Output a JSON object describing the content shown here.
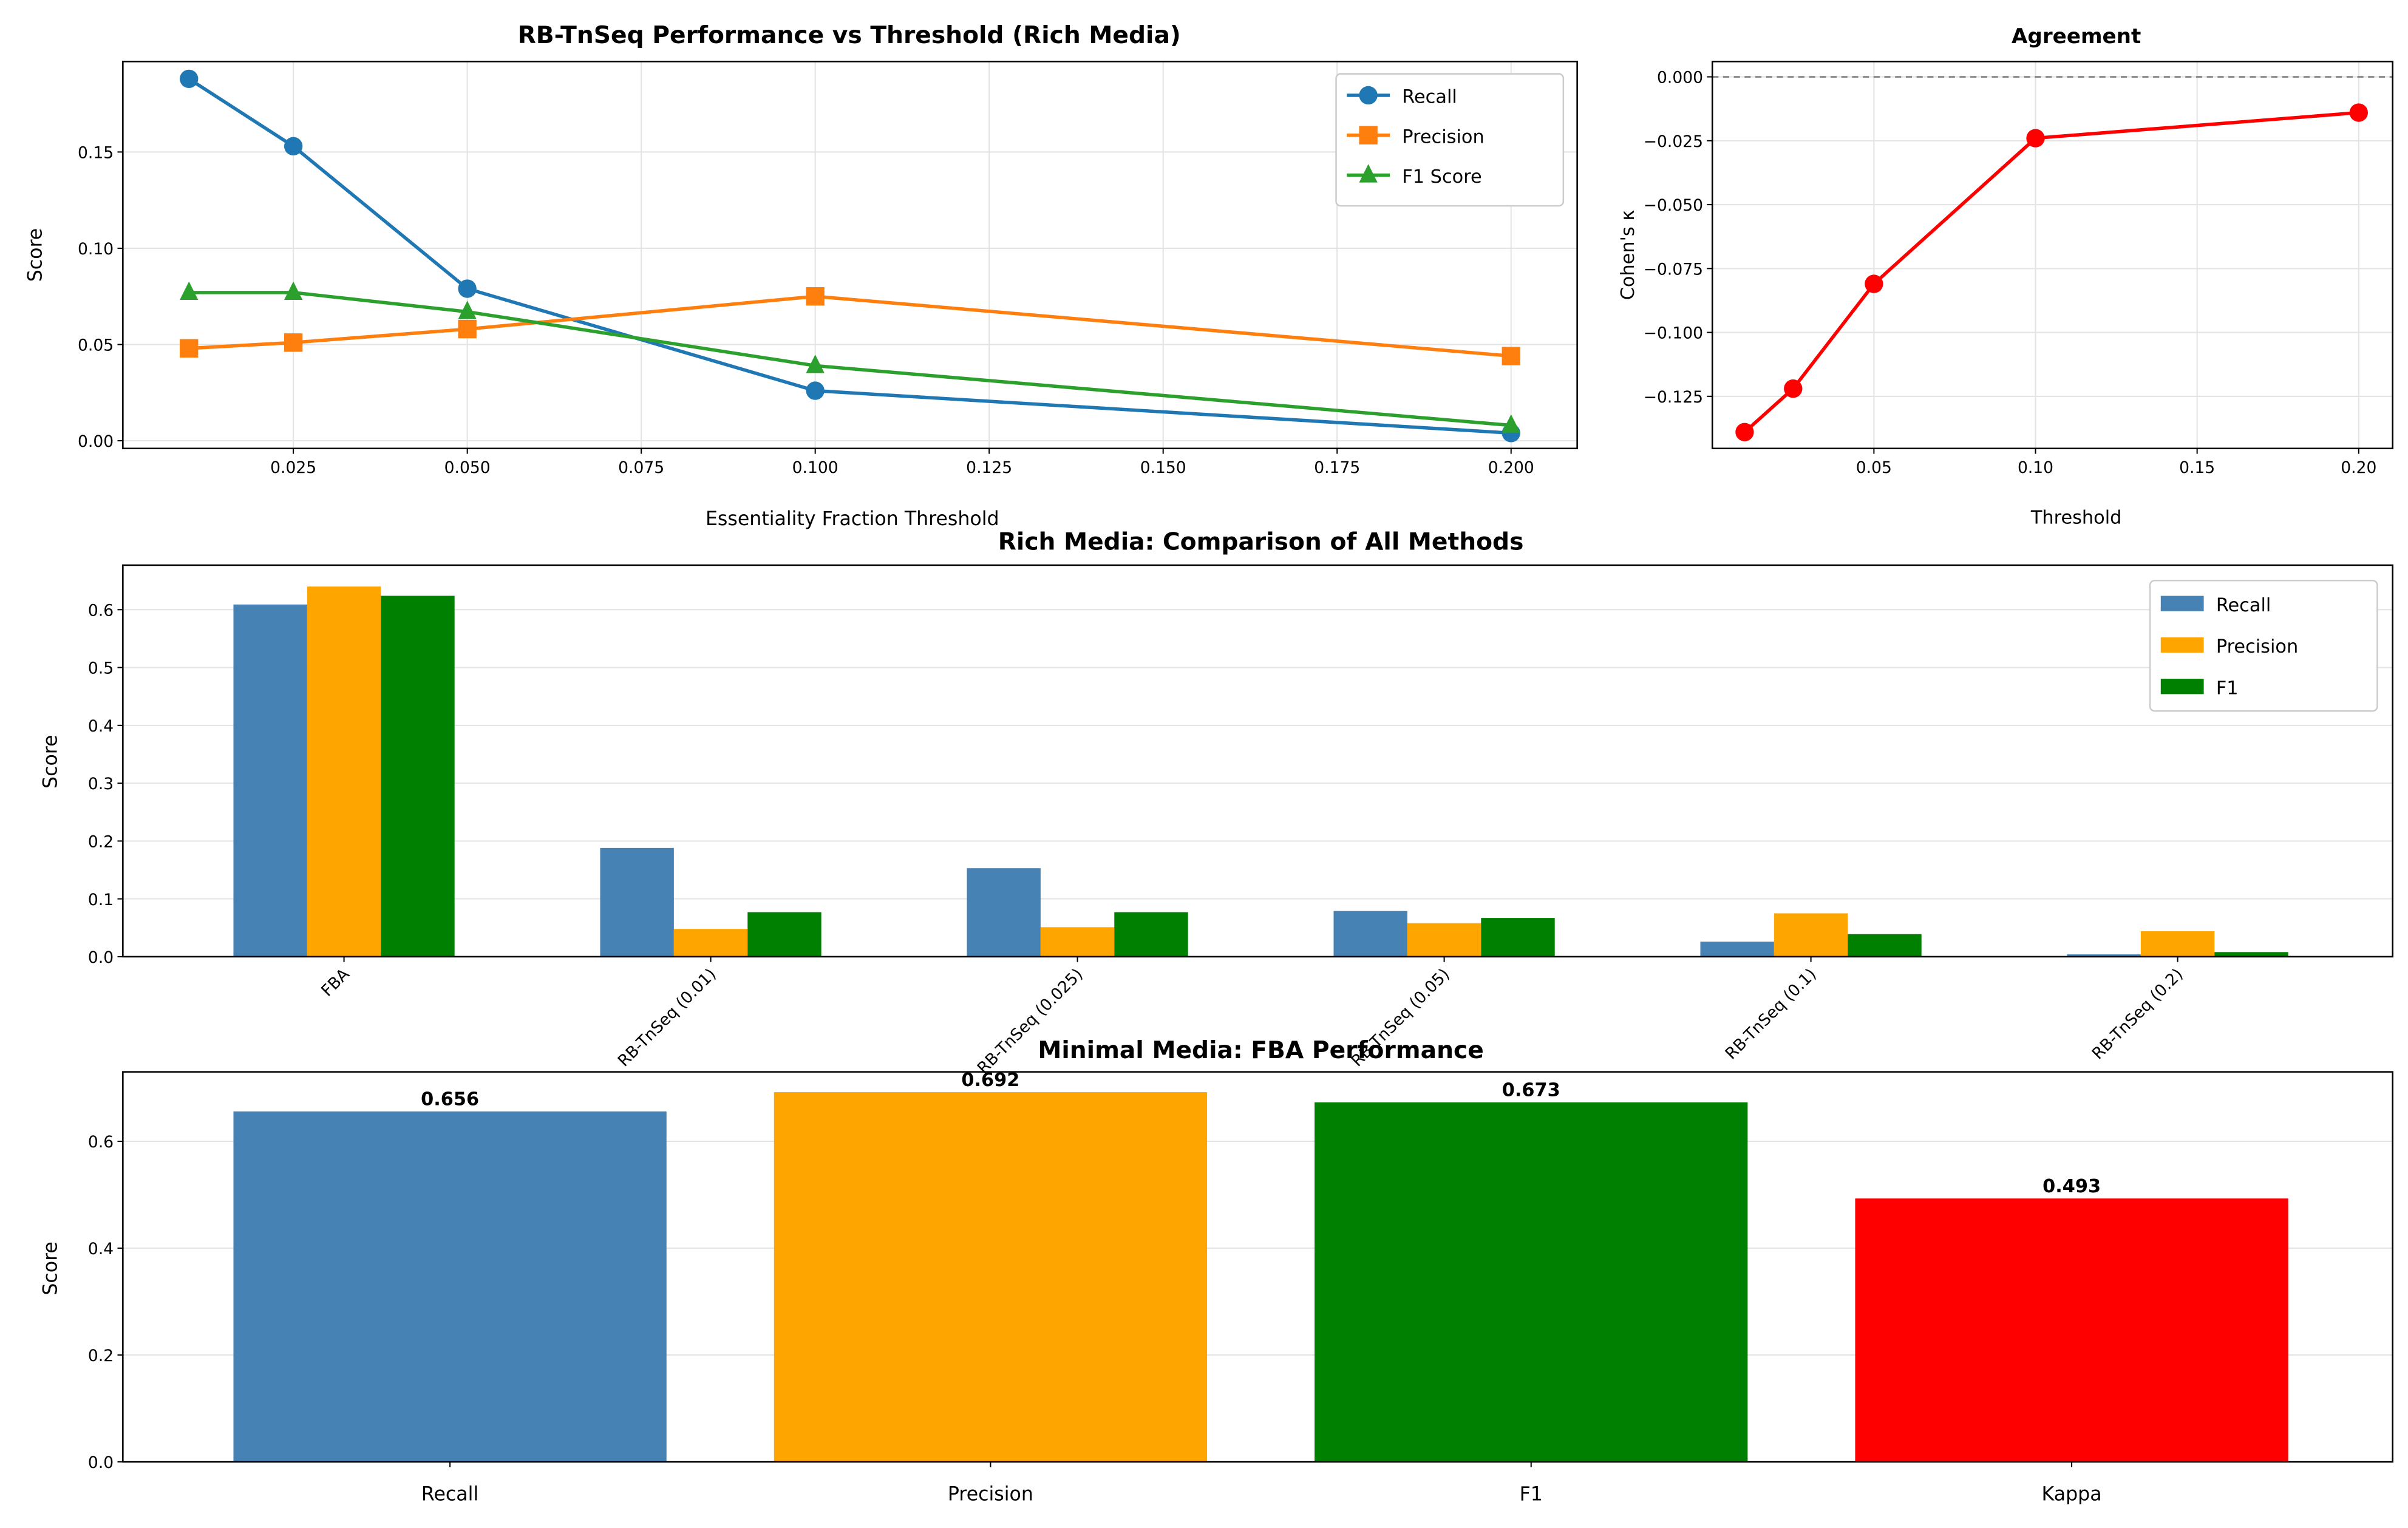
{
  "chart_data": [
    {
      "type": "line",
      "title": "RB-TnSeq Performance vs Threshold (Rich Media)",
      "xlabel": "Essentiality Fraction Threshold",
      "ylabel": "Score",
      "x": [
        0.01,
        0.025,
        0.05,
        0.1,
        0.2
      ],
      "xlim": [
        0.0005,
        0.2095
      ],
      "ylim": [
        -0.004,
        0.197
      ],
      "xticks": [
        0.025,
        0.05,
        0.075,
        0.1,
        0.125,
        0.15,
        0.175,
        0.2
      ],
      "xtick_labels": [
        "0.025",
        "0.050",
        "0.075",
        "0.100",
        "0.125",
        "0.150",
        "0.175",
        "0.200"
      ],
      "yticks": [
        0,
        0.05,
        0.1,
        0.15
      ],
      "ytick_labels": [
        "0.00",
        "0.05",
        "0.10",
        "0.15"
      ],
      "grid": true,
      "legend_position": "top-right",
      "series": [
        {
          "name": "Recall",
          "values": [
            0.188,
            0.153,
            0.079,
            0.026,
            0.004
          ],
          "color": "#1f77b4",
          "marker": "circle"
        },
        {
          "name": "Precision",
          "values": [
            0.048,
            0.051,
            0.058,
            0.075,
            0.044
          ],
          "color": "#ff7f0e",
          "marker": "square"
        },
        {
          "name": "F1 Score",
          "values": [
            0.077,
            0.077,
            0.067,
            0.039,
            0.008
          ],
          "color": "#2ca02c",
          "marker": "triangle"
        }
      ]
    },
    {
      "type": "line",
      "title": "Agreement",
      "xlabel": "Threshold",
      "ylabel": "Cohen's κ",
      "x": [
        0.01,
        0.025,
        0.05,
        0.1,
        0.2
      ],
      "xlim": [
        0.0,
        0.2105
      ],
      "ylim": [
        -0.1454,
        0.006
      ],
      "xticks": [
        0.05,
        0.1,
        0.15,
        0.2
      ],
      "xtick_labels": [
        "0.05",
        "0.10",
        "0.15",
        "0.20"
      ],
      "yticks": [
        0,
        -0.025,
        -0.05,
        -0.075,
        -0.1,
        -0.125
      ],
      "ytick_labels": [
        "0.000",
        "−0.025",
        "−0.050",
        "−0.075",
        "−0.100",
        "−0.125"
      ],
      "reference_line": 0,
      "grid": true,
      "series": [
        {
          "name": "Cohen's κ",
          "values": [
            -0.139,
            -0.122,
            -0.081,
            -0.024,
            -0.014
          ],
          "color": "#ff0000",
          "marker": "circle"
        }
      ]
    },
    {
      "type": "bar",
      "title": "Rich Media: Comparison of All Methods",
      "xlabel": "",
      "ylabel": "Score",
      "categories": [
        "FBA",
        "RB-TnSeq (0.01)",
        "RB-TnSeq (0.025)",
        "RB-TnSeq (0.05)",
        "RB-TnSeq (0.1)",
        "RB-TnSeq (0.2)"
      ],
      "ylim": [
        0,
        0.677
      ],
      "yticks": [
        0,
        0.1,
        0.2,
        0.3,
        0.4,
        0.5,
        0.6
      ],
      "ytick_labels": [
        "0.0",
        "0.1",
        "0.2",
        "0.3",
        "0.4",
        "0.5",
        "0.6"
      ],
      "grid": true,
      "legend_position": "top-right",
      "series": [
        {
          "name": "Recall",
          "values": [
            0.609,
            0.188,
            0.153,
            0.079,
            0.026,
            0.004
          ],
          "color": "#4682b4"
        },
        {
          "name": "Precision",
          "values": [
            0.64,
            0.048,
            0.051,
            0.058,
            0.075,
            0.044
          ],
          "color": "#ffa500"
        },
        {
          "name": "F1",
          "values": [
            0.624,
            0.077,
            0.077,
            0.067,
            0.039,
            0.008
          ],
          "color": "#008000"
        }
      ]
    },
    {
      "type": "bar",
      "title": "Minimal Media: FBA Performance",
      "xlabel": "",
      "ylabel": "Score",
      "categories": [
        "Recall",
        "Precision",
        "F1",
        "Kappa"
      ],
      "values": [
        0.656,
        0.692,
        0.673,
        0.493
      ],
      "value_labels": [
        "0.656",
        "0.692",
        "0.673",
        "0.493"
      ],
      "colors": [
        "#4682b4",
        "#ffa500",
        "#008000",
        "#ff0000"
      ],
      "ylim": [
        0,
        0.73
      ],
      "yticks": [
        0,
        0.2,
        0.4,
        0.6
      ],
      "ytick_labels": [
        "0.0",
        "0.2",
        "0.4",
        "0.6"
      ],
      "grid": true
    }
  ]
}
